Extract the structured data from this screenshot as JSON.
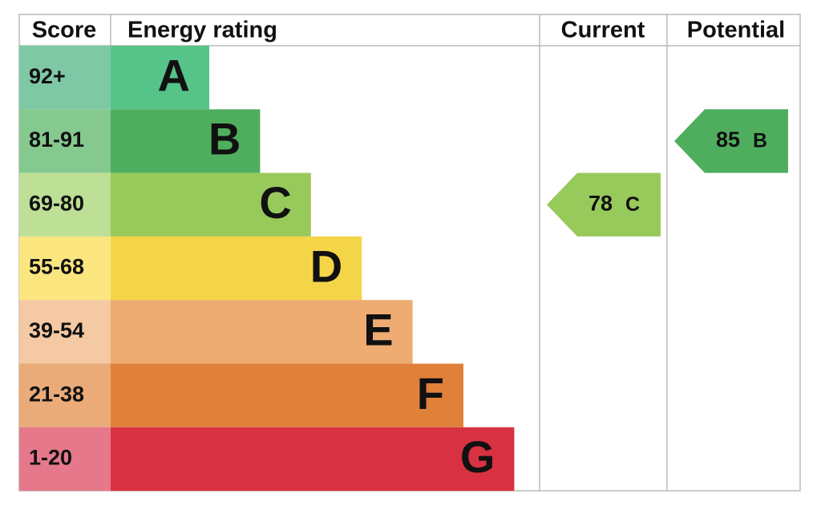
{
  "header": {
    "score": "Score",
    "rating": "Energy rating",
    "current": "Current",
    "potential": "Potential"
  },
  "bands": [
    {
      "score": "92+",
      "letter": "A",
      "color": "#56c388",
      "score_color": "#7fc8a6"
    },
    {
      "score": "81-91",
      "letter": "B",
      "color": "#4fae5e",
      "score_color": "#85c98f"
    },
    {
      "score": "69-80",
      "letter": "C",
      "color": "#98ca5b",
      "score_color": "#bddf96"
    },
    {
      "score": "55-68",
      "letter": "D",
      "color": "#f5d548",
      "score_color": "#fae57f"
    },
    {
      "score": "39-54",
      "letter": "E",
      "color": "#eeab72",
      "score_color": "#f4c9a3"
    },
    {
      "score": "21-38",
      "letter": "F",
      "color": "#e0813a",
      "score_color": "#eaab78"
    },
    {
      "score": "1-20",
      "letter": "G",
      "color": "#d83242",
      "score_color": "#e5788b"
    }
  ],
  "current": {
    "value": "78",
    "letter": "C"
  },
  "potential": {
    "value": "85",
    "letter": "B"
  }
}
